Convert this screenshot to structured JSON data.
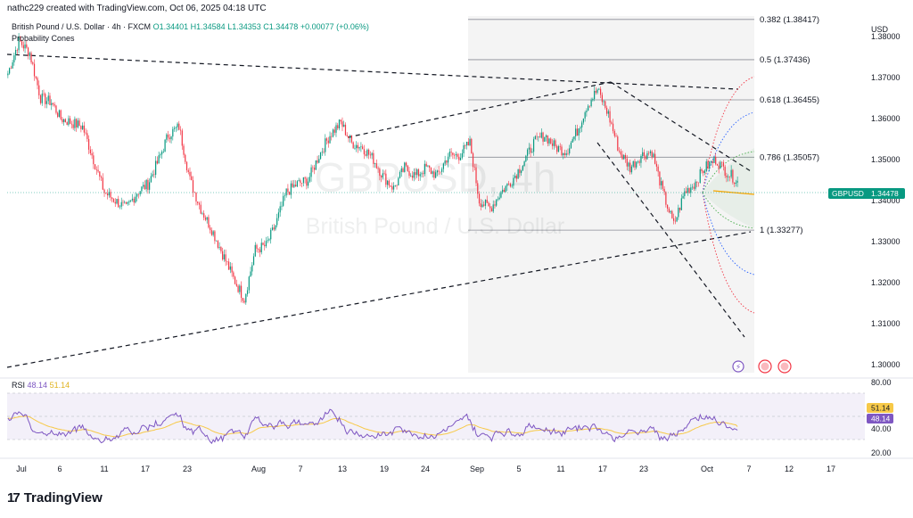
{
  "header": {
    "credit": "nathc229 created with TradingView.com, Oct 06, 2025 04:18 UTC",
    "symbol_line": "British Pound / U.S. Dollar · 4h · FXCM",
    "open": "O1.34401",
    "high": "H1.34584",
    "low": "L1.34353",
    "close": "C1.34478",
    "change": "+0.00077 (+0.06%)",
    "indicator": "Probability Cones"
  },
  "watermark": {
    "main": "GBPUSD, 4h",
    "sub": "British Pound / U.S. Dollar"
  },
  "currency": "USD",
  "price_tag": {
    "symbol": "GBPUSD",
    "value": "1.34478"
  },
  "rsi": {
    "label": "RSI",
    "value": "48.14",
    "ma_value": "51.14",
    "ticks": [
      "80.00",
      "40.00",
      "20.00"
    ]
  },
  "logo": "TradingView",
  "colors": {
    "up": "#089981",
    "down": "#f23645",
    "rsi": "#7e57c2",
    "rsi_ma": "#f7c948",
    "cone_green": "#4caf50",
    "cone_blue": "#2962ff",
    "cone_red": "#f23645"
  },
  "chart_data": {
    "type": "candlestick",
    "y_axis": {
      "ticks": [
        "1.38000",
        "1.37000",
        "1.36000",
        "1.35000",
        "1.34000",
        "1.33000",
        "1.32000",
        "1.31000",
        "1.30000"
      ],
      "range": [
        1.298,
        1.385
      ]
    },
    "x_axis": {
      "ticks": [
        "Jul",
        "6",
        "11",
        "17",
        "23",
        "Aug",
        "7",
        "13",
        "19",
        "24",
        "Sep",
        "5",
        "11",
        "17",
        "23",
        "Oct",
        "7",
        "12",
        "17"
      ]
    },
    "fib_levels": [
      {
        "ratio": "0.382",
        "label": "0.382 (1.38417)",
        "price": 1.38417
      },
      {
        "ratio": "0.5",
        "label": "0.5 (1.37436)",
        "price": 1.37436
      },
      {
        "ratio": "0.618",
        "label": "0.618 (1.36455)",
        "price": 1.36455
      },
      {
        "ratio": "0.786",
        "label": "0.786 (1.35057)",
        "price": 1.35057
      },
      {
        "ratio": "1",
        "label": "1 (1.33277)",
        "price": 1.33277
      }
    ],
    "close_path": [
      [
        "Jul 1",
        1.371
      ],
      [
        "Jul 2",
        1.379
      ],
      [
        "Jul 3",
        1.376
      ],
      [
        "Jul 4",
        1.365
      ],
      [
        "Jul 6",
        1.364
      ],
      [
        "Jul 8",
        1.36
      ],
      [
        "Jul 10",
        1.359
      ],
      [
        "Jul 11",
        1.358
      ],
      [
        "Jul 14",
        1.35
      ],
      [
        "Jul 15",
        1.342
      ],
      [
        "Jul 16",
        1.34
      ],
      [
        "Jul 17",
        1.338
      ],
      [
        "Jul 18",
        1.342
      ],
      [
        "Jul 21",
        1.344
      ],
      [
        "Jul 22",
        1.35
      ],
      [
        "Jul 23",
        1.356
      ],
      [
        "Jul 24",
        1.358
      ],
      [
        "Jul 25",
        1.345
      ],
      [
        "Jul 28",
        1.338
      ],
      [
        "Jul 29",
        1.333
      ],
      [
        "Jul 30",
        1.327
      ],
      [
        "Jul 31",
        1.321
      ],
      [
        "Aug 1",
        1.316
      ],
      [
        "Aug 3",
        1.328
      ],
      [
        "Aug 5",
        1.329
      ],
      [
        "Aug 6",
        1.334
      ],
      [
        "Aug 7",
        1.342
      ],
      [
        "Aug 8",
        1.344
      ],
      [
        "Aug 11",
        1.345
      ],
      [
        "Aug 12",
        1.351
      ],
      [
        "Aug 13",
        1.356
      ],
      [
        "Aug 14",
        1.359
      ],
      [
        "Aug 15",
        1.354
      ],
      [
        "Aug 18",
        1.353
      ],
      [
        "Aug 19",
        1.35
      ],
      [
        "Aug 20",
        1.346
      ],
      [
        "Aug 21",
        1.343
      ],
      [
        "Aug 22",
        1.348
      ],
      [
        "Aug 25",
        1.346
      ],
      [
        "Aug 26",
        1.348
      ],
      [
        "Aug 27",
        1.346
      ],
      [
        "Aug 28",
        1.351
      ],
      [
        "Aug 29",
        1.351
      ],
      [
        "Sep 1",
        1.354
      ],
      [
        "Sep 2",
        1.34
      ],
      [
        "Sep 3",
        1.338
      ],
      [
        "Sep 4",
        1.342
      ],
      [
        "Sep 5",
        1.345
      ],
      [
        "Sep 8",
        1.349
      ],
      [
        "Sep 9",
        1.354
      ],
      [
        "Sep 10",
        1.356
      ],
      [
        "Sep 11",
        1.353
      ],
      [
        "Sep 12",
        1.352
      ],
      [
        "Sep 15",
        1.357
      ],
      [
        "Sep 16",
        1.363
      ],
      [
        "Sep 17",
        1.367
      ],
      [
        "Sep 18",
        1.361
      ],
      [
        "Sep 19",
        1.352
      ],
      [
        "Sep 22",
        1.348
      ],
      [
        "Sep 23",
        1.351
      ],
      [
        "Sep 24",
        1.352
      ],
      [
        "Sep 25",
        1.342
      ],
      [
        "Sep 26",
        1.334
      ],
      [
        "Sep 29",
        1.342
      ],
      [
        "Sep 30",
        1.344
      ],
      [
        "Oct 1",
        1.348
      ],
      [
        "Oct 2",
        1.35
      ],
      [
        "Oct 3",
        1.347
      ],
      [
        "Oct 6",
        1.3448
      ]
    ]
  }
}
